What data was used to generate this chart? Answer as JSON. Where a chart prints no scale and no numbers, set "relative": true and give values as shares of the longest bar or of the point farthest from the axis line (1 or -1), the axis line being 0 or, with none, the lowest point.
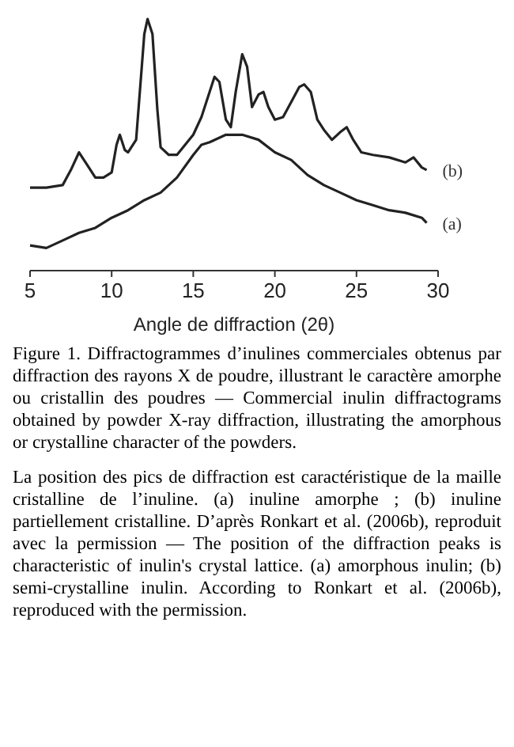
{
  "chart_data": {
    "type": "line",
    "relative": true,
    "xlabel": "Angle de diffraction (2θ)",
    "xlim": [
      5,
      30
    ],
    "xticks": [
      5,
      10,
      15,
      20,
      25,
      30
    ],
    "tick_labels": "x",
    "series": [
      {
        "name": "(b)",
        "color": "#222222",
        "x": [
          5,
          6,
          7,
          7.5,
          8,
          8.5,
          9,
          9.5,
          10,
          10.3,
          10.5,
          10.8,
          11,
          11.5,
          12,
          12.2,
          12.5,
          12.8,
          13,
          13.5,
          14,
          14.5,
          15,
          15.5,
          16,
          16.3,
          16.6,
          17,
          17.3,
          17.6,
          18,
          18.3,
          18.6,
          19,
          19.3,
          19.6,
          20,
          20.5,
          21,
          21.5,
          21.8,
          22.2,
          22.6,
          23,
          23.5,
          24,
          24.4,
          24.8,
          25.3,
          26,
          27,
          28,
          28.5,
          29,
          29.3
        ],
        "values": [
          0.33,
          0.33,
          0.34,
          0.4,
          0.47,
          0.42,
          0.37,
          0.37,
          0.39,
          0.5,
          0.54,
          0.48,
          0.47,
          0.52,
          0.94,
          1,
          0.94,
          0.64,
          0.49,
          0.46,
          0.46,
          0.5,
          0.54,
          0.61,
          0.71,
          0.77,
          0.75,
          0.6,
          0.57,
          0.71,
          0.86,
          0.81,
          0.65,
          0.7,
          0.71,
          0.65,
          0.6,
          0.61,
          0.67,
          0.73,
          0.74,
          0.71,
          0.6,
          0.56,
          0.52,
          0.55,
          0.57,
          0.52,
          0.47,
          0.46,
          0.45,
          0.43,
          0.45,
          0.41,
          0.4
        ]
      },
      {
        "name": "(a)",
        "color": "#222222",
        "x": [
          5,
          6,
          7,
          8,
          9,
          10,
          11,
          12,
          13,
          14,
          15,
          15.5,
          16,
          17,
          18,
          19,
          20,
          21,
          22,
          23,
          24,
          25,
          26,
          27,
          28,
          29,
          29.3
        ],
        "values": [
          0.1,
          0.09,
          0.12,
          0.15,
          0.17,
          0.21,
          0.24,
          0.28,
          0.31,
          0.37,
          0.46,
          0.5,
          0.51,
          0.54,
          0.54,
          0.52,
          0.47,
          0.44,
          0.38,
          0.34,
          0.31,
          0.28,
          0.26,
          0.24,
          0.23,
          0.21,
          0.19
        ]
      }
    ],
    "title": "Figure 1. Diffractogrammes d’inulines commerciales obtenus par diffraction des rayons X de poudre, illustrant le caractère amorphe ou cristallin des poudres — Commercial inulin diffractograms obtained by powder X-ray diffraction, illustrating the amorphous or crystalline character of the powders.",
    "annotations": [
      "La position des pics de diffraction est caractéristique de la maille cristalline de l’inuline. (a) inuline amorphe ; (b) inuline partiellement cristalline. D’après Ronkart et al. (2006b), reproduit avec la permission — The position of the diffraction peaks is characteristic of inulin's crystal lattice. (a) amorphous inulin; (b) semi-crystalline inulin. According to Ronkart et al. (2006b), reproduced with the permission."
    ]
  }
}
